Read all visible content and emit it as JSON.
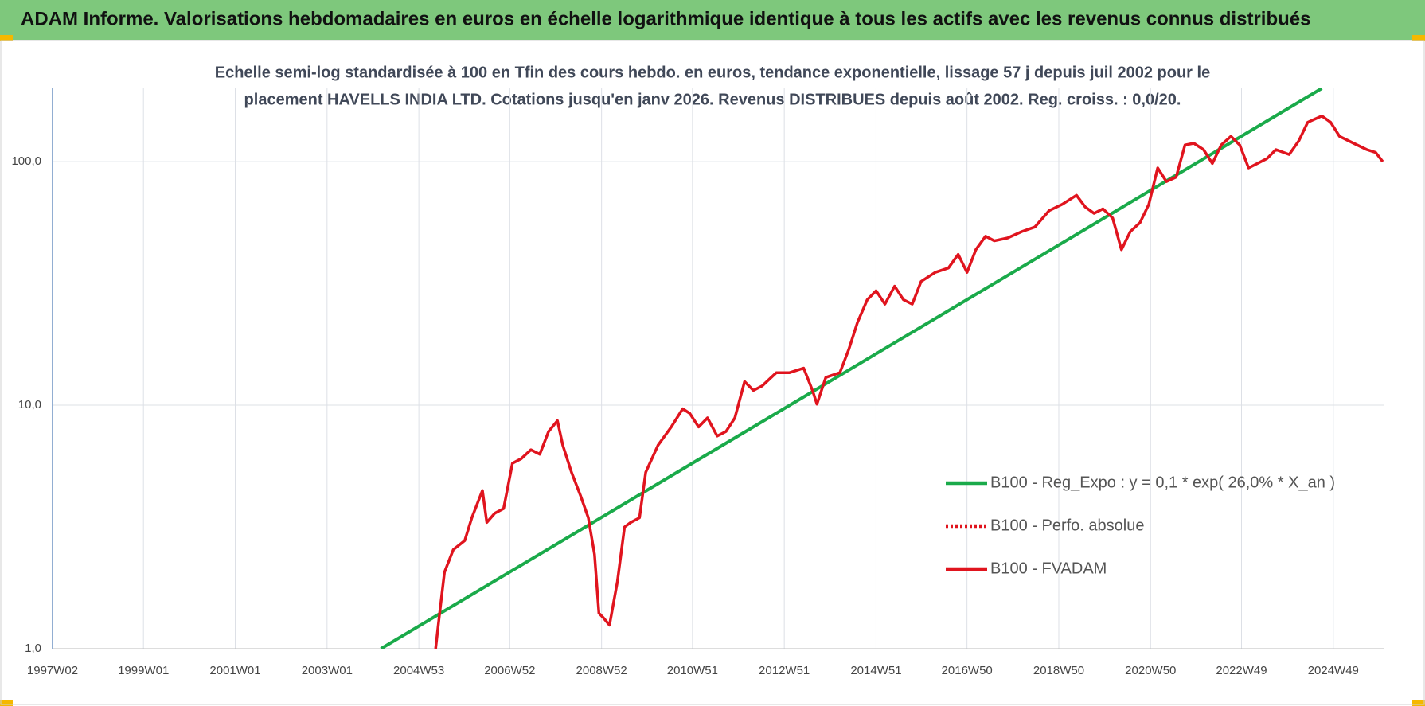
{
  "header": {
    "title": "ADAM Informe. Valorisations hebdomadaires en euros en échelle logarithmique identique à tous les actifs avec les revenus connus distribués"
  },
  "chart_data": {
    "type": "line",
    "title_lines": [
      "Echelle semi-log standardisée à 100 en Tfin des cours hebdo. en euros, tendance exponentielle, lissage 57 j depuis juil 2002 pour le",
      "placement HAVELLS INDIA LTD. Cotations jusqu'en janv 2026. Revenus DISTRIBUES depuis août 2002. Reg. croiss. : 0,0/20."
    ],
    "log_scale": true,
    "grid": true,
    "legend_position": "right",
    "xlim": [
      "1997W02",
      "2026W02"
    ],
    "xticks": [
      "1997W02",
      "1999W01",
      "2001W01",
      "2003W01",
      "2004W53",
      "2006W52",
      "2008W52",
      "2010W51",
      "2012W51",
      "2014W51",
      "2016W50",
      "2018W50",
      "2020W50",
      "2022W49",
      "2024W49"
    ],
    "ylim": [
      1,
      200
    ],
    "yticks": [
      {
        "value": 1,
        "label": "1,0"
      },
      {
        "value": 10,
        "label": "10,0"
      },
      {
        "value": 100,
        "label": "100,0"
      }
    ],
    "series": [
      {
        "name": "B100 - Reg_Expo : y = 0,1 * exp( 26,0% *  X_an )",
        "color": "#1aaa4a",
        "style": "solid",
        "x": [
          "2004W10",
          "2024W36"
        ],
        "values": [
          1,
          200
        ]
      },
      {
        "name": "B100 - Perfo. absolue",
        "color": "#e0141e",
        "style": "dotted",
        "x": [],
        "values": []
      },
      {
        "name": "B100 - FVADAM",
        "color": "#e0141e",
        "style": "solid",
        "x": [
          "2005W20",
          "2005W24",
          "2005W30",
          "2005W40",
          "2006W01",
          "2006W09",
          "2006W21",
          "2006W26",
          "2006W35",
          "2006W45",
          "2007W03",
          "2007W13",
          "2007W24",
          "2007W34",
          "2007W44",
          "2008W02",
          "2008W08",
          "2008W18",
          "2008W28",
          "2008W37",
          "2008W44",
          "2008W49",
          "2009W02",
          "2009W09",
          "2009W18",
          "2009W26",
          "2009W33",
          "2009W43",
          "2009W50",
          "2010W12",
          "2010W27",
          "2010W40",
          "2010W48",
          "2011W06",
          "2011W16",
          "2011W27",
          "2011W37",
          "2011W47",
          "2012W06",
          "2012W16",
          "2012W26",
          "2012W42",
          "2013W05",
          "2013W21",
          "2013W31",
          "2013W36",
          "2013W46",
          "2014W10",
          "2014W20",
          "2014W30",
          "2014W41",
          "2014W51",
          "2015W09",
          "2015W20",
          "2015W30",
          "2015W40",
          "2015W50",
          "2016W14",
          "2016W29",
          "2016W40",
          "2016W50",
          "2017W08",
          "2017W19",
          "2017W29",
          "2017W44",
          "2018W08",
          "2018W23",
          "2018W39",
          "2019W02",
          "2019W18",
          "2019W28",
          "2019W38",
          "2019W48",
          "2020W07",
          "2020W17",
          "2020W27",
          "2020W38",
          "2020W48",
          "2021W06",
          "2021W16",
          "2021W27",
          "2021W37",
          "2021W47",
          "2022W06",
          "2022W16",
          "2022W26",
          "2022W37",
          "2022W47",
          "2023W05",
          "2023W15",
          "2023W26",
          "2023W36",
          "2023W51",
          "2024W10",
          "2024W20",
          "2024W36",
          "2024W46",
          "2025W04",
          "2025W20",
          "2025W35",
          "2025W45",
          "2026W01"
        ],
        "values": [
          1.0,
          1.34,
          2.06,
          2.55,
          2.78,
          3.45,
          4.46,
          3.3,
          3.6,
          3.76,
          5.77,
          6.03,
          6.56,
          6.29,
          7.8,
          8.64,
          6.85,
          5.3,
          4.27,
          3.45,
          2.44,
          1.4,
          1.34,
          1.25,
          1.89,
          3.16,
          3.3,
          3.45,
          5.3,
          6.85,
          8.14,
          9.66,
          9.25,
          8.14,
          8.87,
          7.47,
          7.8,
          8.87,
          12.5,
          11.5,
          12.0,
          13.6,
          13.6,
          14.2,
          11.5,
          10.1,
          13.0,
          13.6,
          16.9,
          21.9,
          27.1,
          29.5,
          26.0,
          30.8,
          27.1,
          26.0,
          32.2,
          35.1,
          36.6,
          41.6,
          35.1,
          43.5,
          49.4,
          47.3,
          48.6,
          51.6,
          53.9,
          62.9,
          66.8,
          72.8,
          65.1,
          61.3,
          64.0,
          58.7,
          43.5,
          51.6,
          56.2,
          66.8,
          94.2,
          82.8,
          86.4,
          117,
          119,
          112,
          98.3,
          117,
          127,
          117,
          94.2,
          98.3,
          103,
          112,
          107,
          122,
          145,
          154,
          145,
          127,
          119,
          112,
          109,
          100
        ]
      }
    ]
  }
}
